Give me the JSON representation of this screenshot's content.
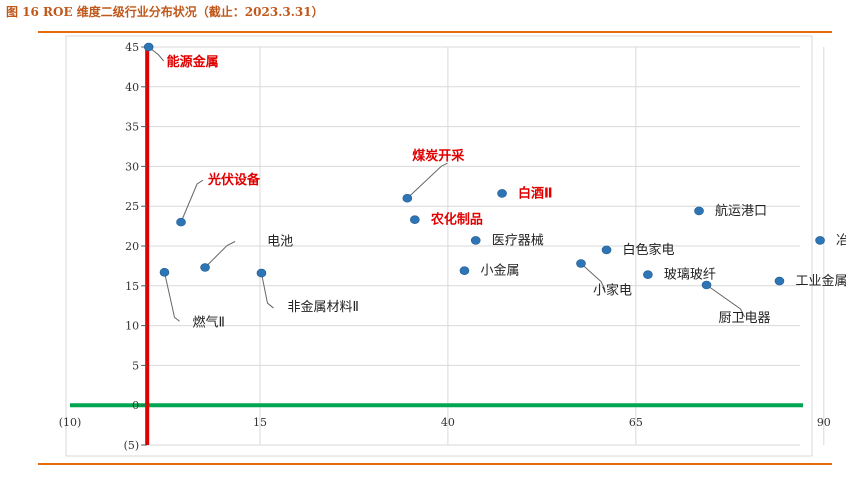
{
  "caption": "图 16 ROE 维度二级行业分布状况（截止：2023.3.31）",
  "colors": {
    "accent": "#e46c0a",
    "marker": "#2e75b6",
    "highlight": "#e00000",
    "x_axis": "#00a651",
    "y_axis": "#e00000",
    "grid": "#d9d9d9"
  },
  "chart_data": {
    "type": "scatter",
    "title": "",
    "xlabel": "",
    "ylabel": "",
    "xlim": [
      -10,
      100
    ],
    "ylim": [
      -5,
      45
    ],
    "xticks": [
      -10,
      15,
      40,
      65,
      90
    ],
    "xtick_labels": [
      "(10)",
      "15",
      "40",
      "65",
      "90"
    ],
    "yticks": [
      -5,
      0,
      5,
      10,
      15,
      20,
      25,
      30,
      35,
      40,
      45
    ],
    "ytick_labels": [
      "(5)",
      "0",
      "5",
      "10",
      "15",
      "20",
      "25",
      "30",
      "35",
      "40",
      "45"
    ],
    "grid": true,
    "points": [
      {
        "label": "能源金属",
        "x": 0.2,
        "y": 45,
        "highlight": true
      },
      {
        "label": "光伏设备",
        "x": 4.5,
        "y": 23,
        "highlight": true
      },
      {
        "label": "燃气Ⅱ",
        "x": 2.3,
        "y": 16.7,
        "highlight": false
      },
      {
        "label": "电池",
        "x": 7.7,
        "y": 17.3,
        "highlight": false
      },
      {
        "label": "非金属材料Ⅱ",
        "x": 15.2,
        "y": 16.6,
        "highlight": false
      },
      {
        "label": "煤炭开采",
        "x": 34.6,
        "y": 26,
        "highlight": true
      },
      {
        "label": "白酒Ⅱ",
        "x": 47.2,
        "y": 26.6,
        "highlight": true
      },
      {
        "label": "农化制品",
        "x": 35.6,
        "y": 23.3,
        "highlight": true
      },
      {
        "label": "医疗器械",
        "x": 43.7,
        "y": 20.7,
        "highlight": false
      },
      {
        "label": "小金属",
        "x": 42.2,
        "y": 16.9,
        "highlight": false
      },
      {
        "label": "白色家电",
        "x": 61.1,
        "y": 19.5,
        "highlight": false
      },
      {
        "label": "小家电",
        "x": 57.7,
        "y": 17.8,
        "highlight": false
      },
      {
        "label": "玻璃玻纤",
        "x": 66.6,
        "y": 16.4,
        "highlight": false
      },
      {
        "label": "航运港口",
        "x": 73.4,
        "y": 24.4,
        "highlight": false
      },
      {
        "label": "厨卫电器",
        "x": 74.4,
        "y": 15.1,
        "highlight": false
      },
      {
        "label": "工业金属",
        "x": 84.1,
        "y": 15.6,
        "highlight": false
      },
      {
        "label": "冶钢原料",
        "x": 89.5,
        "y": 20.7,
        "highlight": false
      }
    ]
  }
}
